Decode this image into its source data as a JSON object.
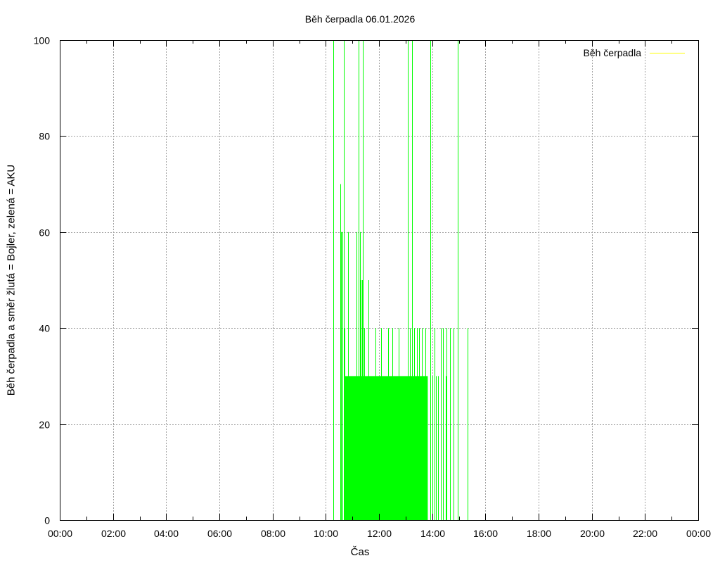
{
  "chart_data": {
    "type": "bar",
    "title": "Běh čerpadla 06.01.2026",
    "xlabel": "Čas",
    "ylabel": "Běh čerpadla a směr žlutá = Bojler, zelená = AKU",
    "xlim": [
      "00:00",
      "24:00"
    ],
    "ylim": [
      0,
      100
    ],
    "x_ticks": [
      "00:00",
      "02:00",
      "04:00",
      "06:00",
      "08:00",
      "10:00",
      "12:00",
      "14:00",
      "16:00",
      "18:00",
      "20:00",
      "22:00",
      "00:00"
    ],
    "y_ticks": [
      "0",
      "20",
      "40",
      "60",
      "80",
      "100"
    ],
    "grid": true,
    "legend": {
      "position": "top-right",
      "entries": [
        {
          "label": "Běh čerpadla",
          "color": "#ffff00"
        }
      ]
    },
    "series": [
      {
        "color": "#00ff00",
        "fill_spans": [
          {
            "start": "10:43",
            "end": "13:50",
            "value": 30
          }
        ],
        "spikes": [
          {
            "x": "10:17",
            "y": 100
          },
          {
            "x": "10:33",
            "y": 70
          },
          {
            "x": "10:35",
            "y": 60
          },
          {
            "x": "10:38",
            "y": 60
          },
          {
            "x": "10:40",
            "y": 100
          },
          {
            "x": "10:43",
            "y": 40
          },
          {
            "x": "10:50",
            "y": 60
          },
          {
            "x": "11:10",
            "y": 60
          },
          {
            "x": "11:14",
            "y": 100
          },
          {
            "x": "11:17",
            "y": 60
          },
          {
            "x": "11:19",
            "y": 50
          },
          {
            "x": "11:22",
            "y": 50
          },
          {
            "x": "11:24",
            "y": 100
          },
          {
            "x": "11:26",
            "y": 40
          },
          {
            "x": "11:36",
            "y": 50
          },
          {
            "x": "11:52",
            "y": 40
          },
          {
            "x": "12:05",
            "y": 40
          },
          {
            "x": "12:20",
            "y": 40
          },
          {
            "x": "12:30",
            "y": 40
          },
          {
            "x": "12:45",
            "y": 40
          },
          {
            "x": "13:05",
            "y": 100
          },
          {
            "x": "13:10",
            "y": 40
          },
          {
            "x": "13:15",
            "y": 100
          },
          {
            "x": "13:20",
            "y": 40
          },
          {
            "x": "13:25",
            "y": 40
          },
          {
            "x": "13:30",
            "y": 40
          },
          {
            "x": "13:37",
            "y": 40
          },
          {
            "x": "13:45",
            "y": 40
          },
          {
            "x": "13:55",
            "y": 100
          },
          {
            "x": "14:00",
            "y": 30
          },
          {
            "x": "14:05",
            "y": 40
          },
          {
            "x": "14:08",
            "y": 30
          },
          {
            "x": "14:13",
            "y": 30
          },
          {
            "x": "14:20",
            "y": 40
          },
          {
            "x": "14:25",
            "y": 40
          },
          {
            "x": "14:30",
            "y": 30
          },
          {
            "x": "14:33",
            "y": 40
          },
          {
            "x": "14:40",
            "y": 40
          },
          {
            "x": "14:48",
            "y": 40
          },
          {
            "x": "14:58",
            "y": 100
          },
          {
            "x": "15:20",
            "y": 40
          }
        ]
      }
    ]
  }
}
